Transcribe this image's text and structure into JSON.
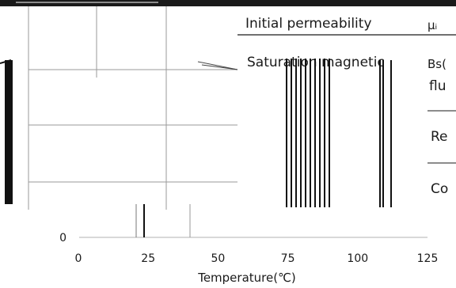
{
  "chart_data": {
    "type": "line",
    "title": "",
    "xlabel": "Temperature(℃)",
    "ylabel": "",
    "x_ticks": [
      0,
      25,
      50,
      75,
      100,
      125
    ],
    "xlim": [
      0,
      125
    ],
    "y_ticks": [
      0
    ],
    "grid": true,
    "series": []
  },
  "overlay_table": {
    "rows": [
      {
        "property": "Initial permeability",
        "symbol": "μᵢ"
      },
      {
        "property": "Saturation magnetic",
        "symbol": "Bs("
      },
      {
        "property": "",
        "symbol": "flu"
      },
      {
        "property": "",
        "symbol": "Re"
      },
      {
        "property": "",
        "symbol": "Co"
      }
    ]
  },
  "colors": {
    "line": "#1a1a1a",
    "grid": "#9a9a9a",
    "background": "#ffffff"
  }
}
